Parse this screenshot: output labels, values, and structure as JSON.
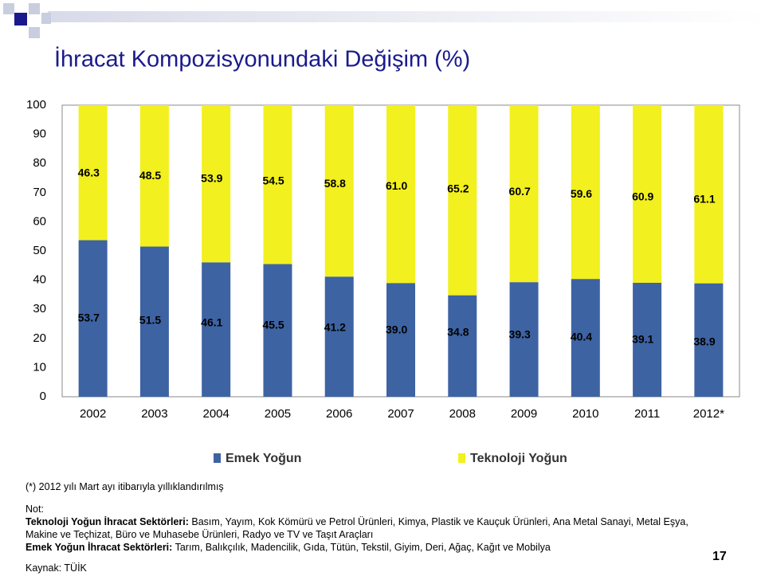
{
  "chart_data": {
    "type": "stacked-bar",
    "title": "İhracat Kompozisyonundaki Değişim (%)",
    "categories": [
      "2002",
      "2003",
      "2004",
      "2005",
      "2006",
      "2007",
      "2008",
      "2009",
      "2010",
      "2011",
      "2012*"
    ],
    "series": [
      {
        "name": "Emek Yoğun",
        "color": "#3d63a3",
        "values": [
          53.7,
          51.5,
          46.1,
          45.5,
          41.2,
          39.0,
          34.8,
          39.3,
          40.4,
          39.1,
          38.9
        ],
        "value_labels": [
          "53.7",
          "51.5",
          "46.1",
          "45.5",
          "41.2",
          "39.0",
          "34.8",
          "39.3",
          "40.4",
          "39.1",
          "38.9"
        ]
      },
      {
        "name": "Teknoloji Yoğun",
        "color": "#f2f01e",
        "values": [
          46.3,
          48.5,
          53.9,
          54.5,
          58.8,
          61.0,
          65.2,
          60.7,
          59.6,
          60.9,
          61.1
        ],
        "value_labels": [
          "46.3",
          "48.5",
          "53.9",
          "54.5",
          "58.8",
          "61.0",
          "65.2",
          "60.7",
          "59.6",
          "60.9",
          "61.1"
        ]
      }
    ],
    "ylim": [
      0,
      100
    ],
    "yticks": [
      0,
      10,
      20,
      30,
      40,
      50,
      60,
      70,
      80,
      90,
      100
    ],
    "grid": false,
    "legend": "bottom"
  },
  "notes": {
    "footnote": "(*) 2012 yılı Mart ayı itibarıyla yıllıklandırılmış",
    "not_label": "Not:",
    "tech_label": "Teknoloji Yoğun İhracat Sektörleri:",
    "tech_text": "Basım, Yayım, Kok Kömürü ve Petrol Ürünleri, Kimya, Plastik ve Kauçuk Ürünleri, Ana Metal Sanayi, Metal Eşya,",
    "tech_text2": "Makine ve Teçhizat, Büro ve Muhasebe Ürünleri, Radyo ve TV  ve Taşıt Araçları",
    "labor_label": "Emek Yoğun İhracat Sektörleri:",
    "labor_text": "Tarım, Balıkçılık, Madencilik, Gıda, Tütün, Tekstil, Giyim, Deri, Ağaç, Kağıt ve Mobilya",
    "source": "Kaynak: TÜİK",
    "page": "17"
  }
}
